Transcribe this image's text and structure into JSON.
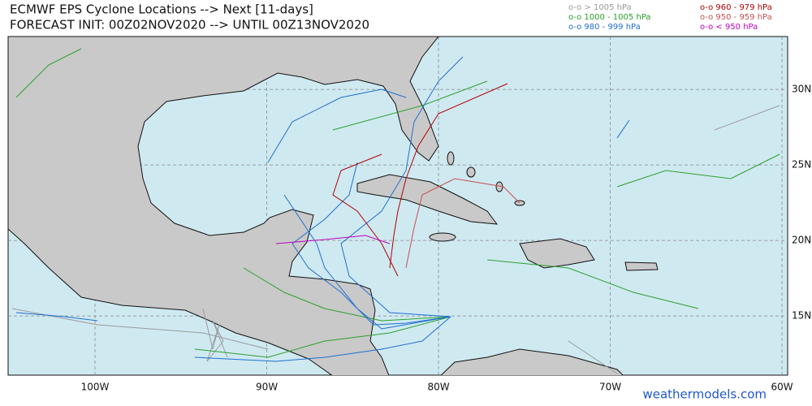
{
  "header": {
    "title": "ECMWF EPS Cyclone Locations --> Next [11-days]",
    "subtitle": "FORECAST INIT: 00Z02NOV2020 --> UNTIL 00Z13NOV2020"
  },
  "legend": [
    {
      "label": "o-o > 1005 hPa",
      "color": "#9a9a9a"
    },
    {
      "label": "o-o 1000 - 1005 hPa",
      "color": "#2ca02c"
    },
    {
      "label": "o-o 980 - 999 hPa",
      "color": "#1f6fd0"
    },
    {
      "label": "o-o 960 - 979 hPa",
      "color": "#b00000"
    },
    {
      "label": "o-o 950 - 959 hPa",
      "color": "#c85050"
    },
    {
      "label": "o-o < 950 hPa",
      "color": "#c000c0"
    }
  ],
  "map": {
    "lonlim": [
      -105.06,
      -59.67
    ],
    "latlim": [
      11.08,
      33.5
    ],
    "lon_ticks": [
      {
        "value": -100,
        "label": "100W"
      },
      {
        "value": -90,
        "label": "90W"
      },
      {
        "value": -80,
        "label": "80W"
      },
      {
        "value": -70,
        "label": "70W"
      },
      {
        "value": -60,
        "label": "60W"
      }
    ],
    "lat_ticks": [
      {
        "value": 30,
        "label": "30N"
      },
      {
        "value": 25,
        "label": "25N"
      },
      {
        "value": 20,
        "label": "20N"
      },
      {
        "value": 15,
        "label": "15N"
      }
    ]
  },
  "footer": {
    "watermark": "weathermodels.com"
  }
}
